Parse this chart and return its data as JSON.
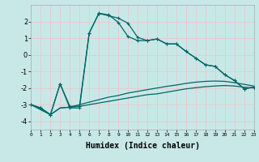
{
  "xlabel": "Humidex (Indice chaleur)",
  "background_color": "#c8e8e8",
  "grid_color": "#e8c8c8",
  "line_color": "#006666",
  "xlim": [
    0,
    23
  ],
  "ylim": [
    -4.5,
    3.0
  ],
  "yticks": [
    -4,
    -3,
    -2,
    -1,
    0,
    1,
    2
  ],
  "L1_x": [
    0,
    1,
    2,
    3,
    4,
    5,
    6,
    7,
    8,
    9,
    10,
    11,
    12,
    13,
    14,
    15,
    16,
    17,
    18,
    19,
    20,
    21,
    22,
    23
  ],
  "L1_y": [
    -3.0,
    -3.2,
    -3.6,
    -1.75,
    -3.2,
    -3.2,
    1.3,
    2.5,
    2.4,
    1.95,
    1.1,
    0.85,
    0.85,
    0.95,
    0.65,
    0.65,
    0.2,
    -0.2,
    -0.6,
    -0.7,
    -1.2,
    -1.55,
    -2.05,
    -1.95
  ],
  "L2_x": [
    0,
    1,
    2,
    3,
    4,
    5,
    6,
    7,
    8,
    9,
    10,
    11,
    12,
    13,
    14,
    15,
    16,
    17,
    18,
    19,
    20,
    21,
    22,
    23
  ],
  "L2_y": [
    -3.0,
    -3.2,
    -3.6,
    -1.75,
    -3.1,
    -3.1,
    1.3,
    2.48,
    2.35,
    2.2,
    1.9,
    1.05,
    0.85,
    0.95,
    0.65,
    0.65,
    0.2,
    -0.2,
    -0.6,
    -0.7,
    -1.2,
    -1.55,
    -2.05,
    -1.95
  ],
  "L3_x": [
    0,
    2,
    3,
    4,
    5,
    6,
    7,
    8,
    9,
    10,
    11,
    12,
    13,
    14,
    15,
    16,
    17,
    18,
    19,
    20,
    21,
    22,
    23
  ],
  "L3_y": [
    -3.0,
    -3.6,
    -3.2,
    -3.15,
    -3.1,
    -3.0,
    -2.9,
    -2.8,
    -2.7,
    -2.6,
    -2.5,
    -2.4,
    -2.35,
    -2.25,
    -2.15,
    -2.05,
    -1.98,
    -1.92,
    -1.88,
    -1.85,
    -1.88,
    -1.95,
    -2.0
  ],
  "L4_x": [
    0,
    2,
    3,
    4,
    5,
    6,
    7,
    8,
    9,
    10,
    11,
    12,
    13,
    14,
    15,
    16,
    17,
    18,
    19,
    20,
    21,
    22,
    23
  ],
  "L4_y": [
    -3.0,
    -3.6,
    -3.2,
    -3.15,
    -3.0,
    -2.85,
    -2.7,
    -2.55,
    -2.45,
    -2.3,
    -2.2,
    -2.1,
    -2.0,
    -1.9,
    -1.82,
    -1.72,
    -1.65,
    -1.6,
    -1.58,
    -1.6,
    -1.68,
    -1.78,
    -1.88
  ]
}
